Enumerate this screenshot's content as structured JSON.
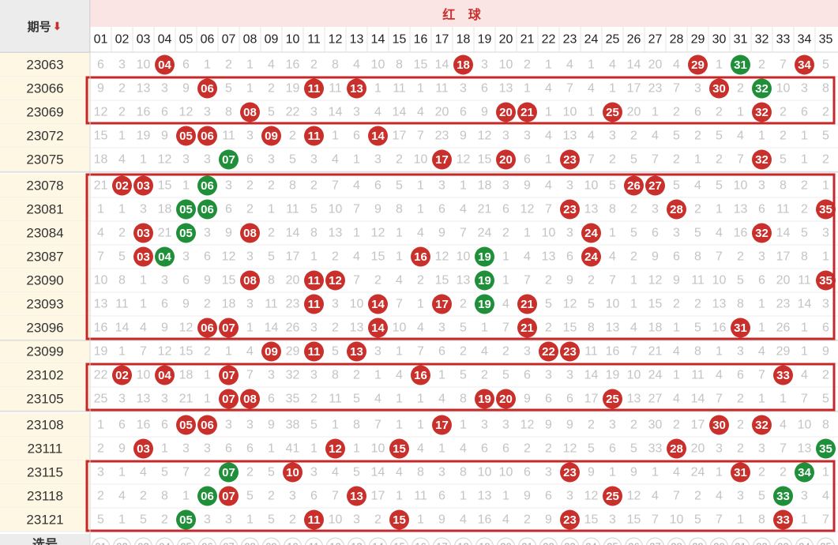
{
  "header": {
    "period_label": "期号",
    "sort_arrow": "⬇",
    "red_label": "红 球",
    "bottom_row_label": "选号"
  },
  "colors": {
    "red_ball": "#c9302c",
    "green_ball": "#1f8f3a",
    "box": "#c62828"
  },
  "chart_data": {
    "type": "table",
    "columns": [
      "01",
      "02",
      "03",
      "04",
      "05",
      "06",
      "07",
      "08",
      "09",
      "10",
      "11",
      "12",
      "13",
      "14",
      "15",
      "16",
      "17",
      "18",
      "19",
      "20",
      "21",
      "22",
      "23",
      "24",
      "25",
      "26",
      "27",
      "28",
      "29",
      "30",
      "31",
      "32",
      "33",
      "34",
      "35"
    ],
    "rows": [
      {
        "period": "23063",
        "cells": [
          "6",
          "3",
          "10",
          "04",
          "6",
          "1",
          "2",
          "1",
          "4",
          "16",
          "2",
          "8",
          "4",
          "10",
          "8",
          "15",
          "14",
          "18",
          "3",
          "10",
          "2",
          "1",
          "4",
          "1",
          "4",
          "14",
          "20",
          "4",
          "29",
          "1",
          "31",
          "2",
          "7",
          "34",
          "5"
        ],
        "red": [
          "04",
          "18",
          "29",
          "34"
        ],
        "green": [
          "31"
        ]
      },
      {
        "period": "23066",
        "cells": [
          "9",
          "2",
          "13",
          "3",
          "9",
          "06",
          "5",
          "1",
          "2",
          "19",
          "11",
          "11",
          "13",
          "1",
          "11",
          "1",
          "11",
          "3",
          "6",
          "13",
          "1",
          "4",
          "7",
          "4",
          "1",
          "17",
          "23",
          "7",
          "3",
          "30",
          "2",
          "32",
          "10",
          "3",
          "8"
        ],
        "red": [
          "06",
          "11",
          "13",
          "30"
        ],
        "green": [
          "32"
        ]
      },
      {
        "period": "23069",
        "cells": [
          "12",
          "2",
          "16",
          "6",
          "12",
          "3",
          "8",
          "08",
          "5",
          "22",
          "3",
          "14",
          "3",
          "4",
          "14",
          "4",
          "20",
          "6",
          "9",
          "20",
          "21",
          "1",
          "10",
          "1",
          "25",
          "20",
          "1",
          "2",
          "6",
          "2",
          "1",
          "32",
          "2",
          "6",
          "2"
        ],
        "red": [
          "08",
          "20",
          "21",
          "25",
          "32"
        ],
        "green": []
      },
      {
        "period": "23072",
        "cells": [
          "15",
          "1",
          "19",
          "9",
          "05",
          "06",
          "11",
          "3",
          "09",
          "2",
          "11",
          "1",
          "6",
          "14",
          "17",
          "7",
          "23",
          "9",
          "12",
          "3",
          "3",
          "4",
          "13",
          "4",
          "3",
          "2",
          "4",
          "5",
          "2",
          "5",
          "4",
          "1",
          "2",
          "1",
          "5"
        ],
        "red": [
          "05",
          "06",
          "09",
          "11",
          "14"
        ],
        "green": []
      },
      {
        "period": "23075",
        "cells": [
          "18",
          "4",
          "1",
          "12",
          "3",
          "3",
          "07",
          "6",
          "3",
          "5",
          "3",
          "4",
          "1",
          "3",
          "2",
          "10",
          "17",
          "12",
          "15",
          "20",
          "6",
          "1",
          "23",
          "7",
          "2",
          "5",
          "7",
          "2",
          "1",
          "2",
          "7",
          "32",
          "5",
          "1",
          "2"
        ],
        "red": [
          "17",
          "20",
          "23",
          "32"
        ],
        "green": [
          "07"
        ]
      },
      {
        "period": "23078",
        "cells": [
          "21",
          "02",
          "03",
          "15",
          "1",
          "06",
          "3",
          "2",
          "2",
          "8",
          "2",
          "7",
          "4",
          "6",
          "5",
          "1",
          "3",
          "1",
          "18",
          "3",
          "9",
          "4",
          "3",
          "10",
          "5",
          "26",
          "27",
          "5",
          "4",
          "5",
          "10",
          "3",
          "8",
          "2",
          "1"
        ],
        "red": [
          "02",
          "03",
          "26",
          "27"
        ],
        "green": [
          "06"
        ]
      },
      {
        "period": "23081",
        "cells": [
          "1",
          "1",
          "3",
          "18",
          "05",
          "06",
          "6",
          "2",
          "1",
          "11",
          "5",
          "10",
          "7",
          "9",
          "8",
          "1",
          "6",
          "4",
          "21",
          "6",
          "12",
          "7",
          "23",
          "13",
          "8",
          "2",
          "3",
          "28",
          "2",
          "1",
          "13",
          "6",
          "11",
          "2",
          "35"
        ],
        "red": [
          "23",
          "28",
          "35"
        ],
        "green": [
          "05",
          "06"
        ]
      },
      {
        "period": "23084",
        "cells": [
          "4",
          "2",
          "03",
          "21",
          "05",
          "3",
          "9",
          "08",
          "2",
          "14",
          "8",
          "13",
          "1",
          "12",
          "1",
          "4",
          "9",
          "7",
          "24",
          "2",
          "1",
          "10",
          "3",
          "24",
          "1",
          "5",
          "6",
          "3",
          "5",
          "4",
          "16",
          "32",
          "14",
          "5",
          "3"
        ],
        "red": [
          "03",
          "08",
          "24",
          "32"
        ],
        "green": [
          "05"
        ]
      },
      {
        "period": "23087",
        "cells": [
          "7",
          "5",
          "03",
          "04",
          "3",
          "6",
          "12",
          "3",
          "5",
          "17",
          "1",
          "2",
          "4",
          "15",
          "1",
          "16",
          "12",
          "10",
          "19",
          "1",
          "4",
          "13",
          "6",
          "24",
          "4",
          "2",
          "9",
          "6",
          "8",
          "7",
          "2",
          "3",
          "17",
          "8",
          "1"
        ],
        "red": [
          "03",
          "16",
          "24"
        ],
        "green": [
          "04",
          "19"
        ]
      },
      {
        "period": "23090",
        "cells": [
          "10",
          "8",
          "1",
          "3",
          "6",
          "9",
          "15",
          "08",
          "8",
          "20",
          "11",
          "12",
          "7",
          "2",
          "4",
          "2",
          "15",
          "13",
          "19",
          "1",
          "7",
          "2",
          "9",
          "2",
          "7",
          "1",
          "12",
          "9",
          "11",
          "10",
          "5",
          "6",
          "20",
          "11",
          "35"
        ],
        "red": [
          "08",
          "11",
          "12",
          "35"
        ],
        "green": [
          "19"
        ]
      },
      {
        "period": "23093",
        "cells": [
          "13",
          "11",
          "1",
          "6",
          "9",
          "2",
          "18",
          "3",
          "11",
          "23",
          "11",
          "3",
          "10",
          "14",
          "7",
          "1",
          "17",
          "2",
          "19",
          "4",
          "21",
          "5",
          "12",
          "5",
          "10",
          "1",
          "15",
          "2",
          "2",
          "13",
          "8",
          "1",
          "23",
          "14",
          "3"
        ],
        "red": [
          "11",
          "14",
          "17",
          "21"
        ],
        "green": [
          "19"
        ]
      },
      {
        "period": "23096",
        "cells": [
          "16",
          "14",
          "4",
          "9",
          "12",
          "06",
          "07",
          "1",
          "14",
          "26",
          "3",
          "2",
          "13",
          "14",
          "10",
          "4",
          "3",
          "5",
          "1",
          "7",
          "21",
          "2",
          "15",
          "8",
          "13",
          "4",
          "18",
          "1",
          "5",
          "16",
          "31",
          "1",
          "26",
          "1",
          "6"
        ],
        "red": [
          "06",
          "07",
          "14",
          "21",
          "31"
        ],
        "green": []
      },
      {
        "period": "23099",
        "cells": [
          "19",
          "1",
          "7",
          "12",
          "15",
          "2",
          "1",
          "4",
          "09",
          "29",
          "11",
          "5",
          "13",
          "3",
          "1",
          "7",
          "6",
          "2",
          "4",
          "2",
          "3",
          "22",
          "23",
          "11",
          "16",
          "7",
          "21",
          "4",
          "8",
          "1",
          "3",
          "4",
          "29",
          "1",
          "9"
        ],
        "red": [
          "09",
          "11",
          "13",
          "22",
          "23"
        ],
        "green": []
      },
      {
        "period": "23102",
        "cells": [
          "22",
          "02",
          "10",
          "04",
          "18",
          "1",
          "07",
          "7",
          "3",
          "32",
          "3",
          "8",
          "2",
          "1",
          "4",
          "16",
          "1",
          "5",
          "2",
          "5",
          "6",
          "3",
          "3",
          "14",
          "19",
          "10",
          "24",
          "1",
          "11",
          "4",
          "6",
          "7",
          "33",
          "4",
          "2"
        ],
        "red": [
          "02",
          "04",
          "07",
          "16",
          "33"
        ],
        "green": []
      },
      {
        "period": "23105",
        "cells": [
          "25",
          "3",
          "13",
          "3",
          "21",
          "1",
          "07",
          "08",
          "6",
          "35",
          "2",
          "11",
          "5",
          "4",
          "1",
          "1",
          "4",
          "8",
          "19",
          "20",
          "9",
          "6",
          "6",
          "17",
          "25",
          "13",
          "27",
          "4",
          "14",
          "7",
          "2",
          "1",
          "1",
          "7",
          "5"
        ],
        "red": [
          "07",
          "08",
          "19",
          "20",
          "25"
        ],
        "green": []
      },
      {
        "period": "23108",
        "cells": [
          "1",
          "6",
          "16",
          "6",
          "05",
          "06",
          "3",
          "3",
          "9",
          "38",
          "5",
          "1",
          "8",
          "7",
          "1",
          "1",
          "17",
          "1",
          "3",
          "3",
          "12",
          "9",
          "9",
          "2",
          "3",
          "2",
          "30",
          "2",
          "17",
          "30",
          "2",
          "32",
          "4",
          "10",
          "8"
        ],
        "red": [
          "05",
          "06",
          "17",
          "30",
          "32"
        ],
        "green": []
      },
      {
        "period": "23111",
        "cells": [
          "2",
          "9",
          "03",
          "1",
          "3",
          "3",
          "6",
          "6",
          "1",
          "41",
          "1",
          "12",
          "1",
          "10",
          "15",
          "4",
          "1",
          "4",
          "6",
          "6",
          "2",
          "2",
          "12",
          "5",
          "6",
          "5",
          "33",
          "28",
          "20",
          "3",
          "2",
          "3",
          "7",
          "13",
          "35"
        ],
        "red": [
          "03",
          "12",
          "15",
          "28"
        ],
        "green": [
          "35"
        ]
      },
      {
        "period": "23115",
        "cells": [
          "3",
          "1",
          "4",
          "5",
          "7",
          "2",
          "07",
          "2",
          "5",
          "10",
          "3",
          "4",
          "5",
          "14",
          "4",
          "8",
          "3",
          "8",
          "10",
          "10",
          "6",
          "3",
          "23",
          "9",
          "1",
          "9",
          "1",
          "4",
          "24",
          "1",
          "31",
          "2",
          "2",
          "34",
          "1"
        ],
        "red": [
          "10",
          "23",
          "31"
        ],
        "green": [
          "07",
          "34"
        ]
      },
      {
        "period": "23118",
        "cells": [
          "2",
          "4",
          "2",
          "8",
          "1",
          "06",
          "07",
          "5",
          "2",
          "3",
          "6",
          "7",
          "13",
          "17",
          "1",
          "11",
          "6",
          "1",
          "13",
          "1",
          "9",
          "6",
          "3",
          "12",
          "25",
          "12",
          "4",
          "7",
          "2",
          "4",
          "3",
          "5",
          "33",
          "3",
          "4"
        ],
        "red": [
          "07",
          "13",
          "25"
        ],
        "green": [
          "06",
          "33"
        ]
      },
      {
        "period": "23121",
        "cells": [
          "5",
          "1",
          "5",
          "2",
          "05",
          "3",
          "3",
          "1",
          "5",
          "2",
          "11",
          "10",
          "3",
          "2",
          "15",
          "1",
          "9",
          "4",
          "16",
          "4",
          "2",
          "9",
          "23",
          "15",
          "3",
          "15",
          "7",
          "10",
          "5",
          "7",
          "1",
          "8",
          "33",
          "1",
          "7"
        ],
        "red": [
          "11",
          "15",
          "23",
          "33"
        ],
        "green": [
          "05"
        ]
      }
    ],
    "boxed_groups": [
      [
        "23066",
        "23069"
      ],
      [
        "23078",
        "23081",
        "23084",
        "23087",
        "23090",
        "23093",
        "23096"
      ],
      [
        "23102",
        "23105"
      ],
      [
        "23115",
        "23118",
        "23121"
      ]
    ]
  }
}
